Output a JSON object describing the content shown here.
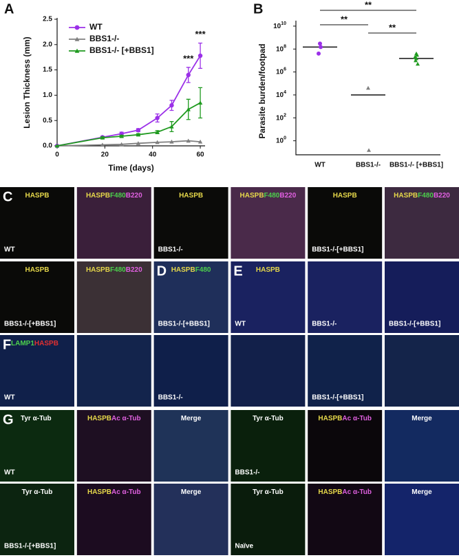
{
  "chart_data": [
    {
      "type": "line",
      "panel": "A",
      "xlabel": "Time (days)",
      "ylabel": "Lesion Thickness (mm)",
      "x": [
        0,
        19,
        27,
        34,
        42,
        48,
        55,
        60
      ],
      "xlim": [
        0,
        62
      ],
      "xticks": [
        0,
        20,
        40,
        60
      ],
      "ylim": [
        0,
        2.5
      ],
      "yticks": [
        {
          "value": 0,
          "label": "0.0"
        },
        0.5,
        {
          "value": 1,
          "label": "1.0"
        },
        1.5,
        {
          "value": 2,
          "label": "2.0"
        },
        2.5
      ],
      "series": [
        {
          "name": "WT",
          "color": "#9b30e8",
          "marker": "circle",
          "values": [
            0,
            0.17,
            0.24,
            0.31,
            0.55,
            0.8,
            1.4,
            1.78
          ],
          "errors": [
            0,
            0.02,
            0.03,
            0.03,
            0.08,
            0.1,
            0.15,
            0.25
          ]
        },
        {
          "name": "BBS1-/-",
          "color": "#7f7f7f",
          "marker": "triangle",
          "values": [
            0,
            0.02,
            0.03,
            0.05,
            0.07,
            0.08,
            0.1,
            0.08
          ]
        },
        {
          "name": "BBS1-/- [+BBS1]",
          "color": "#1f9a1f",
          "marker": "triangle",
          "values": [
            0,
            0.16,
            0.19,
            0.22,
            0.27,
            0.38,
            0.72,
            0.85
          ],
          "errors": [
            0,
            0.02,
            0.02,
            0.02,
            0.03,
            0.1,
            0.2,
            0.3
          ]
        }
      ],
      "annotations": [
        {
          "text": "***",
          "x": 55
        },
        {
          "text": "***",
          "x": 60
        }
      ]
    },
    {
      "type": "scatter",
      "panel": "B",
      "ylabel": "Parasite burden/footpad",
      "log_scale": true,
      "categories": [
        "WT",
        "BBS1-/-",
        "BBS1-/- [+BBS1]"
      ],
      "colors": [
        "#9b30e8",
        "#7f7f7f",
        "#1f9a1f"
      ],
      "values": [
        [
          300000000,
          150000000,
          40000000
        ],
        [
          40000,
          0.15
        ],
        [
          40000000,
          30000000,
          20000000,
          15000000,
          10000000,
          5000000
        ]
      ],
      "means": [
        150000000,
        10000,
        15000000
      ],
      "ylim": [
        0.06,
        30000000000
      ],
      "yticks": [
        {
          "value": 10000000000,
          "label": "10",
          "exponent": "10"
        },
        {
          "value": 100000000,
          "label": "10",
          "exponent": "8"
        },
        {
          "value": 1000000,
          "label": "10",
          "exponent": "6"
        },
        {
          "value": 10000,
          "label": "10",
          "exponent": "4"
        },
        {
          "value": 100,
          "label": "10",
          "exponent": "2"
        },
        {
          "value": 1,
          "label": "10",
          "exponent": "0"
        }
      ],
      "annotations": [
        "**",
        "**",
        "**"
      ]
    }
  ],
  "tiles": [
    {
      "letter": "C",
      "background": "#0a0a08",
      "channels": [
        {
          "text": "HASPB",
          "color": "#e6d84a"
        }
      ],
      "sample": "WT"
    },
    {
      "background": "#3a1f3a",
      "channels": [
        {
          "text": "HASPB",
          "color": "#e6d84a"
        },
        {
          "text": "F480",
          "color": "#4ccf4c"
        },
        {
          "text": "B220",
          "color": "#e060e0"
        }
      ]
    },
    {
      "background": "#0b0b09",
      "channels": [
        {
          "text": "HASPB",
          "color": "#e6d84a"
        }
      ],
      "sample": "BBS1-/-"
    },
    {
      "background": "#4a2a4a",
      "channels": [
        {
          "text": "HASPB",
          "color": "#e6d84a"
        },
        {
          "text": "F480",
          "color": "#4ccf4c"
        },
        {
          "text": "B220",
          "color": "#e060e0"
        }
      ]
    },
    {
      "background": "#0a0a08",
      "channels": [
        {
          "text": "HASPB",
          "color": "#e6d84a"
        }
      ],
      "sample": "BBS1-/-[+BBS1]"
    },
    {
      "background": "#3d2a40",
      "channels": [
        {
          "text": "HASPB",
          "color": "#e6d84a"
        },
        {
          "text": "F480",
          "color": "#4ccf4c"
        },
        {
          "text": "B220",
          "color": "#e060e0"
        }
      ]
    },
    {
      "background": "#0a0a08",
      "channels": [
        {
          "text": "HASPB",
          "color": "#e6d84a"
        }
      ],
      "sample": "BBS1-/-[+BBS1]"
    },
    {
      "background": "#3b3035",
      "channels": [
        {
          "text": "HASPB",
          "color": "#e6d84a"
        },
        {
          "text": "F480",
          "color": "#4ccf4c"
        },
        {
          "text": "B220",
          "color": "#e060e0"
        }
      ]
    },
    {
      "letter": "D",
      "background": "#1f2f5a",
      "channels": [
        {
          "text": "HASPB",
          "color": "#e6d84a"
        },
        {
          "text": "F480",
          "color": "#4ccf4c"
        }
      ],
      "sample": "BBS1-/-[+BBS1]"
    },
    {
      "letter": "E",
      "background": "#1a2260",
      "channels": [
        {
          "text": "HASPB",
          "color": "#e6d84a"
        }
      ],
      "sample": "WT"
    },
    {
      "background": "#1a2260",
      "sample": "BBS1-/-"
    },
    {
      "background": "#151d5a",
      "sample": "BBS1-/-[+BBS1]"
    },
    {
      "letter": "F",
      "background": "#10204a",
      "channels": [
        {
          "text": "LAMP1",
          "color": "#4ccf4c"
        },
        {
          "text": "HASPB",
          "color": "#e03030"
        }
      ],
      "sample": "WT"
    },
    {
      "background": "#13244c"
    },
    {
      "background": "#0f1f4a",
      "sample": "BBS1-/-"
    },
    {
      "background": "#12204a"
    },
    {
      "background": "#10224a",
      "sample": "BBS1-/-[+BBS1]"
    },
    {
      "background": "#14244a"
    },
    {
      "letter": "G",
      "background": "#0c2a10",
      "channels": [
        {
          "text": "Tyr α-Tub",
          "color": "#ffffff"
        }
      ],
      "sample": "WT"
    },
    {
      "background": "#1e0f22",
      "channels": [
        {
          "text": "HASPB",
          "color": "#e6d84a"
        },
        {
          "text": "Ac α-Tub",
          "color": "#e060e0"
        }
      ]
    },
    {
      "background": "#1f3358",
      "channels": [
        {
          "text": "Merge",
          "color": "#ffffff"
        }
      ]
    },
    {
      "background": "#0a200c",
      "channels": [
        {
          "text": "Tyr α-Tub",
          "color": "#ffffff"
        }
      ],
      "sample": "BBS1-/-"
    },
    {
      "background": "#0b070b",
      "channels": [
        {
          "text": "HASPB",
          "color": "#e6d84a"
        },
        {
          "text": "Ac α-Tub",
          "color": "#e060e0"
        }
      ]
    },
    {
      "background": "#132a60",
      "channels": [
        {
          "text": "Merge",
          "color": "#ffffff"
        }
      ]
    },
    {
      "background": "#0c2410",
      "channels": [
        {
          "text": "Tyr α-Tub",
          "color": "#ffffff"
        }
      ],
      "sample": "BBS1-/-[+BBS1]"
    },
    {
      "background": "#1c0c20",
      "channels": [
        {
          "text": "HASPB",
          "color": "#e6d84a"
        },
        {
          "text": "Ac α-Tub",
          "color": "#e060e0"
        }
      ]
    },
    {
      "background": "#23305a",
      "channels": [
        {
          "text": "Merge",
          "color": "#ffffff"
        }
      ]
    },
    {
      "background": "#0a1c0c",
      "channels": [
        {
          "text": "Tyr α-Tub",
          "color": "#ffffff"
        }
      ],
      "sample": "Naïve"
    },
    {
      "background": "#120814",
      "channels": [
        {
          "text": "HASPB",
          "color": "#e6d84a"
        },
        {
          "text": "Ac α-Tub",
          "color": "#e060e0"
        }
      ]
    },
    {
      "background": "#14246a",
      "channels": [
        {
          "text": "Merge",
          "color": "#ffffff"
        }
      ]
    }
  ]
}
